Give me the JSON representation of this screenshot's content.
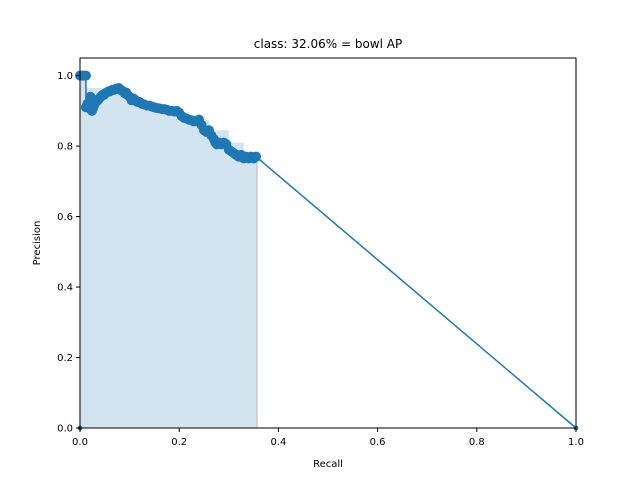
{
  "chart_data": {
    "type": "area",
    "title": "class: 32.06% = bowl AP",
    "xlabel": "Recall",
    "ylabel": "Precision",
    "xlim": [
      0,
      1
    ],
    "ylim": [
      0,
      1.05
    ],
    "xticks": [
      "0.0",
      "0.2",
      "0.4",
      "0.6",
      "0.8",
      "1.0"
    ],
    "yticks": [
      "0.0",
      "0.2",
      "0.4",
      "0.6",
      "0.8",
      "1.0"
    ],
    "grid": false,
    "legend": "none",
    "colors": {
      "line": "#1f77b4",
      "fill": "#1f77b4",
      "edge": "#e8a8a8"
    },
    "series": [
      {
        "role": "precision-recall curve (markers)",
        "x": [
          0.0,
          0.003,
          0.006,
          0.009,
          0.012,
          0.012,
          0.015,
          0.018,
          0.021,
          0.024,
          0.027,
          0.03,
          0.033,
          0.036,
          0.039,
          0.042,
          0.045,
          0.048,
          0.051,
          0.054,
          0.057,
          0.06,
          0.063,
          0.066,
          0.069,
          0.072,
          0.075,
          0.078,
          0.081,
          0.084,
          0.087,
          0.09,
          0.093,
          0.096,
          0.1,
          0.104,
          0.108,
          0.112,
          0.116,
          0.12,
          0.125,
          0.13,
          0.135,
          0.14,
          0.145,
          0.15,
          0.155,
          0.16,
          0.165,
          0.17,
          0.175,
          0.18,
          0.185,
          0.19,
          0.195,
          0.2,
          0.205,
          0.21,
          0.215,
          0.22,
          0.225,
          0.23,
          0.235,
          0.24,
          0.245,
          0.25,
          0.255,
          0.26,
          0.265,
          0.27,
          0.273,
          0.276,
          0.28,
          0.285,
          0.29,
          0.295,
          0.3,
          0.305,
          0.31,
          0.315,
          0.32,
          0.325,
          0.33,
          0.335,
          0.34,
          0.345,
          0.35,
          0.355,
          1.0
        ],
        "y": [
          1.0,
          1.0,
          1.0,
          1.0,
          1.0,
          0.91,
          0.92,
          0.91,
          0.94,
          0.9,
          0.91,
          0.92,
          0.93,
          0.93,
          0.935,
          0.94,
          0.945,
          0.945,
          0.95,
          0.952,
          0.955,
          0.955,
          0.958,
          0.96,
          0.96,
          0.962,
          0.963,
          0.965,
          0.96,
          0.958,
          0.955,
          0.95,
          0.952,
          0.945,
          0.94,
          0.93,
          0.935,
          0.93,
          0.925,
          0.925,
          0.92,
          0.918,
          0.915,
          0.915,
          0.912,
          0.91,
          0.908,
          0.907,
          0.905,
          0.905,
          0.903,
          0.9,
          0.9,
          0.898,
          0.9,
          0.895,
          0.885,
          0.88,
          0.878,
          0.875,
          0.873,
          0.87,
          0.872,
          0.875,
          0.86,
          0.845,
          0.84,
          0.845,
          0.83,
          0.82,
          0.81,
          0.805,
          0.81,
          0.805,
          0.81,
          0.805,
          0.79,
          0.785,
          0.78,
          0.775,
          0.77,
          0.775,
          0.765,
          0.77,
          0.765,
          0.77,
          0.765,
          0.77,
          0.0
        ]
      },
      {
        "role": "interpolated precision (filled area)",
        "x": [
          0.0,
          0.012,
          0.012,
          0.09,
          0.09,
          0.1,
          0.1,
          0.12,
          0.12,
          0.15,
          0.15,
          0.18,
          0.18,
          0.2,
          0.2,
          0.22,
          0.22,
          0.26,
          0.26,
          0.3,
          0.3,
          0.33,
          0.33,
          0.357,
          0.357
        ],
        "y": [
          1.0,
          1.0,
          0.965,
          0.965,
          0.955,
          0.955,
          0.935,
          0.935,
          0.925,
          0.925,
          0.91,
          0.91,
          0.9,
          0.9,
          0.895,
          0.895,
          0.875,
          0.875,
          0.845,
          0.845,
          0.81,
          0.81,
          0.775,
          0.775,
          0.77
        ]
      }
    ]
  }
}
